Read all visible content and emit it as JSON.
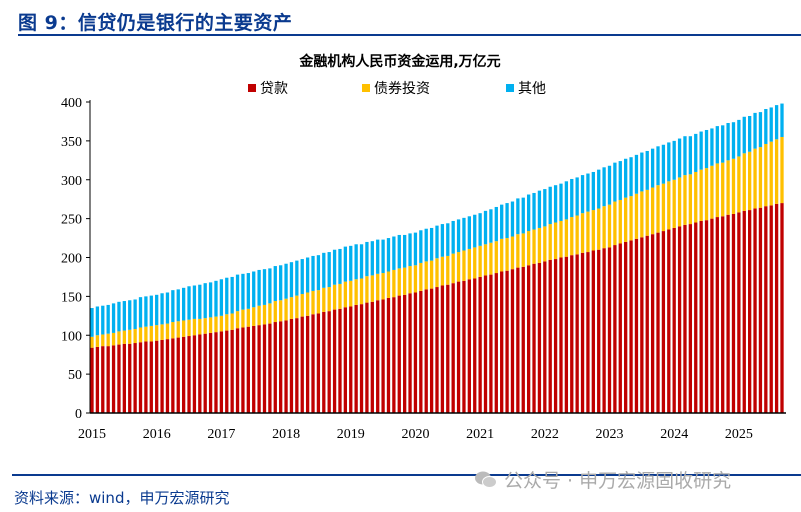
{
  "header": {
    "title": "图 9：信贷仍是银行的主要资产"
  },
  "footer": {
    "source": "资料来源：wind，申万宏源研究",
    "watermark": "公众号 · 申万宏源固收研究"
  },
  "chart_data": {
    "type": "bar",
    "stacked": true,
    "title": "金融机构人民币资金运用,万亿元",
    "legend_position": "top",
    "x_tick_labels": [
      "2015",
      "2016",
      "2017",
      "2018",
      "2019",
      "2020",
      "2021",
      "2022",
      "2023",
      "2024",
      "2025"
    ],
    "x_range": [
      "2015-01",
      "2025-09"
    ],
    "frequency": "monthly",
    "ylim": [
      0,
      400
    ],
    "y_ticks": [
      0,
      50,
      100,
      150,
      200,
      250,
      300,
      350,
      400
    ],
    "grid": false,
    "series": [
      {
        "name": "贷款",
        "color": "#c00000",
        "values": [
          84,
          85,
          86,
          86,
          87,
          88,
          89,
          89,
          90,
          91,
          92,
          92,
          93,
          94,
          95,
          96,
          97,
          98,
          99,
          100,
          101,
          102,
          103,
          104,
          105,
          106,
          107,
          109,
          110,
          111,
          112,
          113,
          114,
          115,
          117,
          118,
          119,
          121,
          122,
          124,
          125,
          127,
          128,
          130,
          131,
          133,
          134,
          136,
          137,
          139,
          140,
          142,
          143,
          145,
          146,
          148,
          149,
          151,
          152,
          154,
          155,
          157,
          159,
          160,
          162,
          164,
          165,
          167,
          169,
          170,
          172,
          173,
          175,
          177,
          178,
          180,
          182,
          183,
          185,
          187,
          188,
          190,
          192,
          193,
          195,
          197,
          198,
          200,
          201,
          203,
          204,
          206,
          207,
          209,
          210,
          212,
          213,
          216,
          218,
          220,
          222,
          224,
          226,
          228,
          230,
          232,
          234,
          236,
          238,
          240,
          242,
          243,
          245,
          247,
          248,
          250,
          252,
          253,
          255,
          256,
          258,
          260,
          261,
          263,
          264,
          266,
          267,
          269,
          270
        ]
      },
      {
        "name": "债券投资",
        "color": "#ffc000",
        "values": [
          14,
          15,
          15,
          16,
          16,
          17,
          17,
          18,
          18,
          19,
          19,
          20,
          20,
          20,
          20,
          21,
          21,
          21,
          21,
          21,
          20,
          20,
          20,
          20,
          20,
          21,
          21,
          22,
          23,
          23,
          24,
          25,
          25,
          26,
          27,
          27,
          28,
          28,
          29,
          29,
          30,
          30,
          30,
          31,
          31,
          32,
          32,
          33,
          33,
          33,
          33,
          34,
          34,
          34,
          34,
          34,
          35,
          35,
          35,
          35,
          35,
          36,
          36,
          36,
          37,
          37,
          37,
          38,
          38,
          39,
          39,
          40,
          40,
          40,
          41,
          41,
          42,
          42,
          42,
          43,
          43,
          44,
          44,
          45,
          45,
          46,
          47,
          47,
          48,
          49,
          50,
          51,
          52,
          52,
          53,
          54,
          55,
          56,
          56,
          57,
          57,
          58,
          59,
          59,
          60,
          61,
          61,
          62,
          62,
          63,
          64,
          64,
          65,
          66,
          67,
          68,
          69,
          69,
          70,
          71,
          72,
          74,
          75,
          77,
          78,
          80,
          82,
          83,
          85
        ]
      },
      {
        "name": "其他",
        "color": "#00b0f0",
        "values": [
          37,
          37,
          37,
          37,
          38,
          38,
          38,
          38,
          38,
          39,
          39,
          39,
          39,
          40,
          40,
          41,
          41,
          42,
          43,
          43,
          44,
          45,
          45,
          46,
          47,
          47,
          47,
          47,
          46,
          46,
          46,
          46,
          46,
          45,
          45,
          45,
          45,
          45,
          45,
          45,
          45,
          45,
          45,
          45,
          45,
          45,
          45,
          45,
          45,
          45,
          44,
          44,
          44,
          44,
          43,
          43,
          43,
          43,
          42,
          42,
          42,
          42,
          42,
          42,
          42,
          42,
          42,
          42,
          42,
          42,
          42,
          42,
          42,
          43,
          43,
          44,
          44,
          45,
          45,
          46,
          46,
          47,
          47,
          48,
          48,
          48,
          48,
          48,
          49,
          49,
          49,
          49,
          49,
          49,
          50,
          50,
          50,
          50,
          50,
          50,
          50,
          50,
          50,
          50,
          50,
          50,
          50,
          50,
          50,
          50,
          50,
          49,
          49,
          49,
          49,
          48,
          48,
          48,
          48,
          47,
          47,
          47,
          46,
          46,
          45,
          45,
          44,
          44,
          43
        ]
      }
    ]
  }
}
